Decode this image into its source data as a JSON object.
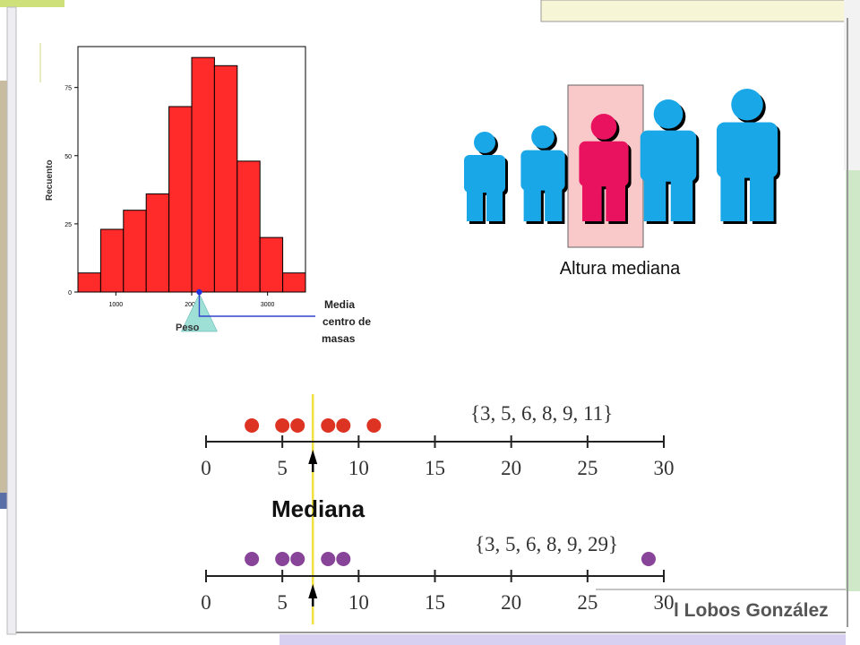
{
  "colors": {
    "histogram_bar": "#ff2a2a",
    "person": "#1aa7e8",
    "median_person": "#e8125f",
    "median_highlight": "#f9c8c8",
    "marker_line": "#3344cc",
    "triangle": "#9fe0d6",
    "median_line": "#f0e040",
    "dots_top": "#dd3322",
    "dots_bottom": "#884499"
  },
  "histogram": {
    "ylabel": "Recuento",
    "xlabel": "Peso",
    "mean_label_1": "Media",
    "mean_label_2": "centro de",
    "mean_label_3": "masas",
    "chart_data": {
      "type": "bar",
      "x_bin_start": 500,
      "bin_width": 300,
      "values": [
        7,
        23,
        30,
        36,
        68,
        86,
        83,
        48,
        20,
        7
      ],
      "xlim": [
        500,
        3500
      ],
      "ylim": [
        0,
        90
      ],
      "xticks": [
        1000,
        2000,
        3000
      ],
      "yticks": [
        0,
        25,
        50,
        75
      ],
      "mean": 2100
    }
  },
  "people": {
    "caption": "Altura mediana",
    "heights": [
      1,
      1.07,
      1.2,
      1.36,
      1.48
    ],
    "median_index": 2,
    "icons": [
      "person-icon",
      "person-icon",
      "person-icon",
      "person-icon",
      "person-icon"
    ]
  },
  "dotplots": {
    "median_title": "Mediana",
    "set_top": "{3, 5, 6, 8, 9, 11}",
    "set_bottom": "{3, 5, 6, 8, 9, 29}",
    "axis_ticks": [
      0,
      5,
      10,
      15,
      20,
      25,
      30
    ],
    "top_values": [
      3,
      5,
      6,
      8,
      9,
      11
    ],
    "bottom_values": [
      3,
      5,
      6,
      8,
      9,
      29
    ],
    "median": 7
  },
  "footer": {
    "author": "l Lobos González"
  }
}
